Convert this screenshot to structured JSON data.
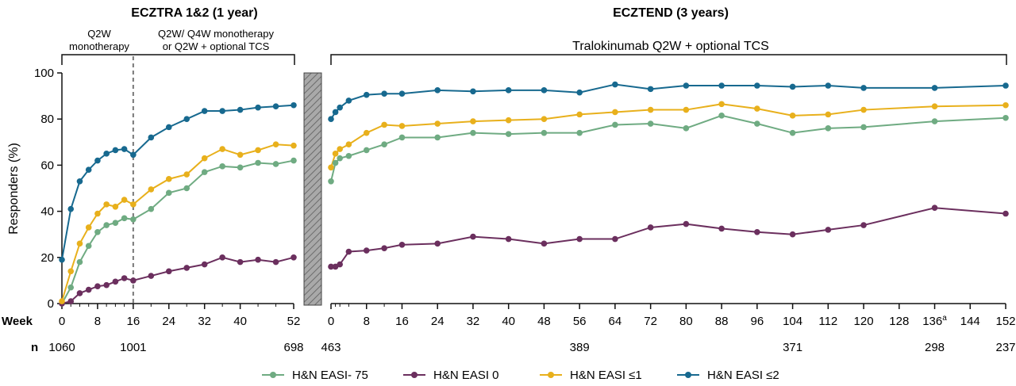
{
  "chart_data": {
    "type": "line",
    "ylabel": "Responders (%)",
    "ylim": [
      0,
      100
    ],
    "yticks": [
      0,
      20,
      40,
      60,
      80,
      100
    ],
    "x_row_label": "Week",
    "n_row_label": "n",
    "grid": false,
    "legend_position": "bottom",
    "colors": {
      "H&N EASI- 75": "#6fab82",
      "H&N EASI 0": "#6b2f5e",
      "H&N EASI ≤1": "#e8b01c",
      "H&N EASI ≤2": "#17698f"
    },
    "panels": [
      {
        "title": "ECZTRA 1&2 (1 year)",
        "xlim": [
          0,
          52
        ],
        "xticks": [
          "0",
          "8",
          "16",
          "24",
          "32",
          "40",
          "52"
        ],
        "xtick_values": [
          0,
          8,
          16,
          24,
          32,
          40,
          52
        ],
        "divider_x": 16,
        "phase_labels": [
          {
            "line1": "Q2W",
            "line2": "monotherapy"
          },
          {
            "line1": "Q2W/ Q4W monotherapy",
            "line2": "or Q2W + optional TCS"
          }
        ],
        "n_values": [
          {
            "week": 0,
            "n": "1060"
          },
          {
            "week": 16,
            "n": "1001"
          },
          {
            "week": 52,
            "n": "698"
          }
        ],
        "x": [
          0,
          2,
          4,
          6,
          8,
          10,
          12,
          14,
          16,
          20,
          24,
          28,
          32,
          36,
          40,
          44,
          48,
          52
        ],
        "series": [
          {
            "name": "H&N EASI- 75",
            "values": [
              0,
              7,
              18,
              25,
              31,
              34,
              35,
              37,
              36.5,
              41,
              48,
              50,
              57,
              59.5,
              59,
              61,
              60.5,
              62
            ]
          },
          {
            "name": "H&N EASI 0",
            "values": [
              0,
              1,
              4.5,
              6,
              7.5,
              8,
              9.5,
              11,
              10,
              12,
              14,
              15.5,
              17,
              20,
              18,
              19,
              18,
              20
            ]
          },
          {
            "name": "H&N EASI ≤1",
            "values": [
              1,
              14,
              26,
              33,
              39,
              43,
              42,
              45,
              43,
              49.5,
              54,
              56,
              63,
              67,
              64.5,
              66.5,
              69,
              68.5
            ]
          },
          {
            "name": "H&N EASI ≤2",
            "values": [
              19,
              41,
              53,
              58,
              62,
              65,
              66.5,
              67,
              64.5,
              72,
              76.5,
              80,
              83.5,
              83.5,
              84,
              85,
              85.5,
              86
            ]
          }
        ]
      },
      {
        "title": "ECZTEND (3 years)",
        "subtitle": "Tralokinumab Q2W + optional TCS",
        "xlim": [
          0,
          152
        ],
        "xticks": [
          "0",
          "8",
          "16",
          "24",
          "32",
          "40",
          "48",
          "56",
          "64",
          "72",
          "80",
          "88",
          "96",
          "104",
          "112",
          "120",
          "128",
          "136",
          "144",
          "152"
        ],
        "xtick_values": [
          0,
          8,
          16,
          24,
          32,
          40,
          48,
          56,
          64,
          72,
          80,
          88,
          96,
          104,
          112,
          120,
          128,
          136,
          144,
          152
        ],
        "superscript_tick": {
          "tick": "136",
          "sup": "a"
        },
        "n_values": [
          {
            "week": 0,
            "n": "463"
          },
          {
            "week": 56,
            "n": "389"
          },
          {
            "week": 104,
            "n": "371"
          },
          {
            "week": 136,
            "n": "298"
          },
          {
            "week": 152,
            "n": "237"
          }
        ],
        "x": [
          0,
          1,
          2,
          4,
          8,
          12,
          16,
          24,
          32,
          40,
          48,
          56,
          64,
          72,
          80,
          88,
          96,
          104,
          112,
          120,
          136,
          152
        ],
        "series": [
          {
            "name": "H&N EASI- 75",
            "values": [
              53,
              61,
              63,
              64,
              66.5,
              69,
              72,
              72,
              74,
              73.5,
              74,
              74,
              77.5,
              78,
              76,
              81.5,
              78,
              74,
              76,
              76.5,
              79,
              80.5
            ]
          },
          {
            "name": "H&N EASI 0",
            "values": [
              16,
              16,
              17,
              22.5,
              23,
              24,
              25.5,
              26,
              29,
              28,
              26,
              28,
              28,
              33,
              34.5,
              32.5,
              31,
              30,
              32,
              34,
              41.5,
              39
            ]
          },
          {
            "name": "H&N EASI ≤1",
            "values": [
              59,
              65,
              67,
              69,
              74,
              77.5,
              77,
              78,
              79,
              79.5,
              80,
              82,
              83,
              84,
              84,
              86.5,
              84.5,
              81.5,
              82,
              84,
              85.5,
              86
            ]
          },
          {
            "name": "H&N EASI ≤2",
            "values": [
              80,
              83,
              85,
              88,
              90.5,
              91,
              91,
              92.5,
              92,
              92.5,
              92.5,
              91.5,
              95,
              93,
              94.5,
              94.5,
              94.5,
              94,
              94.5,
              93.5,
              93.5,
              94.5
            ]
          }
        ]
      }
    ],
    "legend": [
      "H&N EASI- 75",
      "H&N EASI 0",
      "H&N EASI ≤1",
      "H&N EASI ≤2"
    ]
  }
}
